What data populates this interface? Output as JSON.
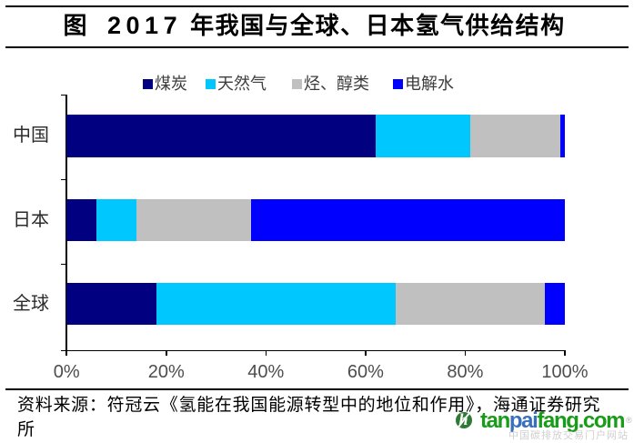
{
  "title": {
    "prefix": "图",
    "year": "2017",
    "rest": "年我国与全球、日本氢气供给结构"
  },
  "chart_data": {
    "type": "bar",
    "orientation": "horizontal",
    "stacked": true,
    "title": "图 2017 年我国与全球、日本氢气供给结构",
    "categories": [
      "中国",
      "日本",
      "全球"
    ],
    "series": [
      {
        "name": "煤炭",
        "color": "#000080",
        "values": [
          62,
          6,
          18
        ]
      },
      {
        "name": "天然气",
        "color": "#00c8ff",
        "values": [
          19,
          8,
          48
        ]
      },
      {
        "name": "烃、醇类",
        "color": "#c0c0c0",
        "values": [
          18,
          23,
          30
        ]
      },
      {
        "name": "电解水",
        "color": "#0000ff",
        "values": [
          1,
          63,
          4
        ]
      }
    ],
    "xlim": [
      0,
      100
    ],
    "x_ticks": [
      0,
      20,
      40,
      60,
      80,
      100
    ],
    "x_tick_labels": [
      "0%",
      "20%",
      "40%",
      "60%",
      "80%",
      "100%"
    ],
    "legend_position": "top",
    "grid": false
  },
  "source": {
    "line1": "资料来源：符冠云《氢能在我国能源转型中的地位和作用》，海通证券研究",
    "line2": "所"
  },
  "watermark": {
    "icon": "h",
    "parts": [
      {
        "text": "tan",
        "color": "#1a9c1a"
      },
      {
        "text": "pai",
        "color": "#3a6fc0"
      },
      {
        "text": "fang",
        "color": "#1a9c1a"
      },
      {
        "text": ".com",
        "color": "#1a9c1a"
      }
    ],
    "registered_mark": "®",
    "tagline": "中国碳排放交易门户网站"
  }
}
